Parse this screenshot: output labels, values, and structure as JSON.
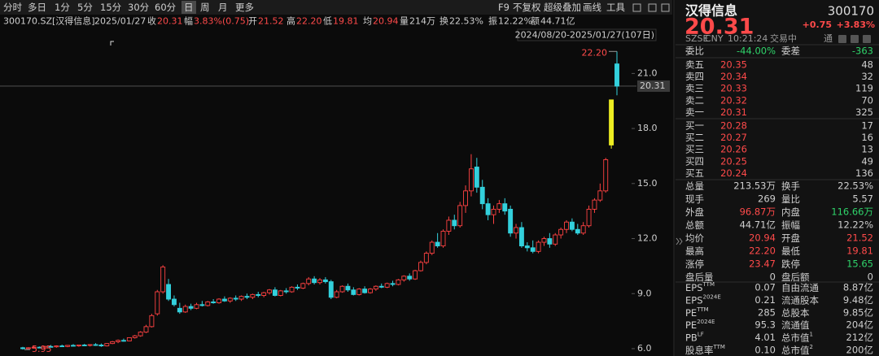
{
  "toolbar": {
    "periods": [
      "分时",
      "多日",
      "1分",
      "5分",
      "15分",
      "30分",
      "60分",
      "日",
      "周",
      "月",
      "更多"
    ],
    "selected": 7,
    "tools": [
      "F9",
      "不复权",
      "超级叠加",
      "画线",
      "工具"
    ]
  },
  "info_bar": {
    "symbol": "300170.SZ[汉得信息]",
    "date": "2025/01/27",
    "fields": [
      {
        "label": "收",
        "value": "20.31",
        "color": "up"
      },
      {
        "label": "幅",
        "value": "3.83%(0.75)",
        "color": "up"
      },
      {
        "label": "开",
        "value": "21.52",
        "color": "up"
      },
      {
        "label": "高",
        "value": "22.20",
        "color": "up"
      },
      {
        "label": "低",
        "value": "19.81",
        "color": "up"
      },
      {
        "label": "均",
        "value": "20.94",
        "color": "up"
      },
      {
        "label": "量",
        "value": "214万"
      },
      {
        "label": "换",
        "value": "22.53%"
      },
      {
        "label": "振",
        "value": "12.22%"
      },
      {
        "label": "额",
        "value": "44.71亿"
      }
    ]
  },
  "chart_data": {
    "type": "candlestick",
    "range_label": "2024/08/20-2025/01/27(107日)",
    "ohlc": [
      [
        6.05,
        6.1,
        5.95,
        6.0
      ],
      [
        6.0,
        6.08,
        5.97,
        6.05
      ],
      [
        6.05,
        6.12,
        6.0,
        6.08
      ],
      [
        6.08,
        6.12,
        6.02,
        6.04
      ],
      [
        6.04,
        6.15,
        6.02,
        6.12
      ],
      [
        6.12,
        6.2,
        6.08,
        6.1
      ],
      [
        6.1,
        6.18,
        6.05,
        6.15
      ],
      [
        6.15,
        6.22,
        6.1,
        6.12
      ],
      [
        6.12,
        6.2,
        6.08,
        6.18
      ],
      [
        6.18,
        6.25,
        6.12,
        6.15
      ],
      [
        6.15,
        6.22,
        6.1,
        6.2
      ],
      [
        6.2,
        6.26,
        6.14,
        6.18
      ],
      [
        6.18,
        6.24,
        6.12,
        6.22
      ],
      [
        6.22,
        6.3,
        6.15,
        6.2
      ],
      [
        6.2,
        6.28,
        6.1,
        6.15
      ],
      [
        6.15,
        6.3,
        6.12,
        6.28
      ],
      [
        6.28,
        6.42,
        6.25,
        6.38
      ],
      [
        6.38,
        6.5,
        6.3,
        6.45
      ],
      [
        6.45,
        6.55,
        6.38,
        6.42
      ],
      [
        6.42,
        6.62,
        6.4,
        6.6
      ],
      [
        6.6,
        6.75,
        6.55,
        6.7
      ],
      [
        6.7,
        6.95,
        6.65,
        6.9
      ],
      [
        6.9,
        7.3,
        6.85,
        7.2
      ],
      [
        7.2,
        7.9,
        7.15,
        7.8
      ],
      [
        7.9,
        9.2,
        7.8,
        9.1
      ],
      [
        9.1,
        10.55,
        9.0,
        10.45
      ],
      [
        9.5,
        9.8,
        8.6,
        8.7
      ],
      [
        8.7,
        8.9,
        8.3,
        8.4
      ],
      [
        8.2,
        8.5,
        7.9,
        8.0
      ],
      [
        8.0,
        8.4,
        7.95,
        8.3
      ],
      [
        8.3,
        8.45,
        8.1,
        8.2
      ],
      [
        8.2,
        8.5,
        8.15,
        8.4
      ],
      [
        8.4,
        8.6,
        8.3,
        8.35
      ],
      [
        8.35,
        8.6,
        8.3,
        8.55
      ],
      [
        8.55,
        8.7,
        8.45,
        8.5
      ],
      [
        8.5,
        8.75,
        8.45,
        8.7
      ],
      [
        8.7,
        8.85,
        8.55,
        8.6
      ],
      [
        8.6,
        8.8,
        8.5,
        8.75
      ],
      [
        8.75,
        8.9,
        8.6,
        8.7
      ],
      [
        8.7,
        8.9,
        8.6,
        8.85
      ],
      [
        8.85,
        9.0,
        8.7,
        8.8
      ],
      [
        8.8,
        9.0,
        8.7,
        8.95
      ],
      [
        8.95,
        9.1,
        8.8,
        8.9
      ],
      [
        8.9,
        9.1,
        8.8,
        9.05
      ],
      [
        9.05,
        9.25,
        8.95,
        9.2
      ],
      [
        9.2,
        9.35,
        8.85,
        8.9
      ],
      [
        8.9,
        9.2,
        8.85,
        9.15
      ],
      [
        9.15,
        9.3,
        9.0,
        9.1
      ],
      [
        9.1,
        9.4,
        9.05,
        9.35
      ],
      [
        9.35,
        9.5,
        9.2,
        9.3
      ],
      [
        9.3,
        9.6,
        9.25,
        9.55
      ],
      [
        9.55,
        9.9,
        9.45,
        9.8
      ],
      [
        9.8,
        9.95,
        9.5,
        9.6
      ],
      [
        9.6,
        9.85,
        9.5,
        9.75
      ],
      [
        9.75,
        9.9,
        9.55,
        9.65
      ],
      [
        9.65,
        9.75,
        8.7,
        8.8
      ],
      [
        8.8,
        9.2,
        8.75,
        9.1
      ],
      [
        9.1,
        9.45,
        9.05,
        9.4
      ],
      [
        9.4,
        9.55,
        9.1,
        9.2
      ],
      [
        9.2,
        9.35,
        8.9,
        8.95
      ],
      [
        8.95,
        9.3,
        8.9,
        9.25
      ],
      [
        9.25,
        9.4,
        9.0,
        9.05
      ],
      [
        9.05,
        9.3,
        9.0,
        9.25
      ],
      [
        9.25,
        9.45,
        9.15,
        9.4
      ],
      [
        9.4,
        9.55,
        9.3,
        9.35
      ],
      [
        9.35,
        9.6,
        9.3,
        9.55
      ],
      [
        9.55,
        9.7,
        9.4,
        9.5
      ],
      [
        9.5,
        9.8,
        9.45,
        9.75
      ],
      [
        9.75,
        10.0,
        9.65,
        9.95
      ],
      [
        9.95,
        10.1,
        9.7,
        9.8
      ],
      [
        9.8,
        10.3,
        9.75,
        10.25
      ],
      [
        10.25,
        10.8,
        10.2,
        10.7
      ],
      [
        10.7,
        11.3,
        10.6,
        11.2
      ],
      [
        11.2,
        11.9,
        11.1,
        11.8
      ],
      [
        11.8,
        12.3,
        11.5,
        11.6
      ],
      [
        11.6,
        12.5,
        11.5,
        12.4
      ],
      [
        12.4,
        13.2,
        12.2,
        13.0
      ],
      [
        13.0,
        13.3,
        12.5,
        12.7
      ],
      [
        12.7,
        14.0,
        12.6,
        13.8
      ],
      [
        13.8,
        14.9,
        13.4,
        14.6
      ],
      [
        14.6,
        16.6,
        14.3,
        15.8
      ],
      [
        15.9,
        16.4,
        14.5,
        14.8
      ],
      [
        14.8,
        15.2,
        13.6,
        13.9
      ],
      [
        13.9,
        14.2,
        13.0,
        13.3
      ],
      [
        13.3,
        13.8,
        12.8,
        13.6
      ],
      [
        13.6,
        14.1,
        13.4,
        13.9
      ],
      [
        13.9,
        14.2,
        13.3,
        13.5
      ],
      [
        13.6,
        13.8,
        12.1,
        12.3
      ],
      [
        12.3,
        12.8,
        12.0,
        12.6
      ],
      [
        12.6,
        12.9,
        11.5,
        11.6
      ],
      [
        11.6,
        11.8,
        11.3,
        11.5
      ],
      [
        11.5,
        11.9,
        11.2,
        11.3
      ],
      [
        11.3,
        11.9,
        11.2,
        11.8
      ],
      [
        11.8,
        12.1,
        11.6,
        12.0
      ],
      [
        12.0,
        12.3,
        11.5,
        11.7
      ],
      [
        11.7,
        12.3,
        11.6,
        12.2
      ],
      [
        12.2,
        12.6,
        12.0,
        12.5
      ],
      [
        12.5,
        13.0,
        12.3,
        12.9
      ],
      [
        12.9,
        13.1,
        12.4,
        12.5
      ],
      [
        12.5,
        12.8,
        12.2,
        12.3
      ],
      [
        12.3,
        12.9,
        12.2,
        12.7
      ],
      [
        12.7,
        13.8,
        12.6,
        13.6
      ],
      [
        13.6,
        14.2,
        13.4,
        14.1
      ],
      [
        14.1,
        15.0,
        14.0,
        14.6
      ],
      [
        14.6,
        16.4,
        14.5,
        16.3
      ],
      [
        17.1,
        19.56,
        16.9,
        19.56
      ],
      [
        21.52,
        22.2,
        19.81,
        20.31
      ]
    ],
    "ylim": [
      5.6,
      22.7
    ],
    "yticks": [
      {
        "value": 6,
        "label": "6.0"
      },
      {
        "value": 9,
        "label": "9.0"
      },
      {
        "value": 12,
        "label": "12.0"
      },
      {
        "value": 15,
        "label": "15.0"
      },
      {
        "value": 18,
        "label": "18.0"
      },
      {
        "value": 21,
        "label": "21.0"
      }
    ],
    "colors": {
      "up": "#ff4242",
      "down": "#33d0dc",
      "limit_up": "#eeee22"
    },
    "high_label": {
      "value": 22.2,
      "label": "22.20"
    },
    "low_label": 5.95,
    "last_label": 20.31
  },
  "quote": {
    "name": "汉得信息",
    "code": "300170",
    "price": "20.31",
    "change": "+0.75",
    "change_pct": "+3.83%",
    "status": [
      "SZSE",
      "CNY",
      "10:21:24",
      "交易中"
    ],
    "badge": "通"
  },
  "order_book": {
    "summary": [
      {
        "label": "委比",
        "value": "-44.00%",
        "color": "down"
      },
      {
        "label": "委差",
        "value": "-363",
        "color": "down"
      }
    ],
    "asks": [
      {
        "label": "卖五",
        "price": "20.35",
        "volume": "48"
      },
      {
        "label": "卖四",
        "price": "20.34",
        "volume": "32"
      },
      {
        "label": "卖三",
        "price": "20.33",
        "volume": "119"
      },
      {
        "label": "卖二",
        "price": "20.32",
        "volume": "70"
      },
      {
        "label": "卖一",
        "price": "20.31",
        "volume": "325"
      }
    ],
    "bids": [
      {
        "label": "买一",
        "price": "20.28",
        "volume": "17"
      },
      {
        "label": "买二",
        "price": "20.27",
        "volume": "16"
      },
      {
        "label": "买三",
        "price": "20.26",
        "volume": "13"
      },
      {
        "label": "买四",
        "price": "20.25",
        "volume": "49"
      },
      {
        "label": "买五",
        "price": "20.24",
        "volume": "136"
      }
    ]
  },
  "stats": [
    [
      {
        "label": "总量",
        "value": "213.53万"
      },
      {
        "label": "换手",
        "value": "22.53%"
      }
    ],
    [
      {
        "label": "现手",
        "value": "269"
      },
      {
        "label": "量比",
        "value": "5.57"
      }
    ],
    [
      {
        "label": "外盘",
        "value": "96.87万",
        "color": "up"
      },
      {
        "label": "内盘",
        "value": "116.66万",
        "color": "down"
      }
    ],
    [
      {
        "label": "总额",
        "value": "44.71亿"
      },
      {
        "label": "振幅",
        "value": "12.22%"
      }
    ],
    [
      {
        "label": "均价",
        "value": "20.94",
        "color": "up"
      },
      {
        "label": "开盘",
        "value": "21.52",
        "color": "up"
      }
    ],
    [
      {
        "label": "最高",
        "value": "22.20",
        "color": "up"
      },
      {
        "label": "最低",
        "value": "19.81",
        "color": "up"
      }
    ],
    [
      {
        "label": "涨停",
        "value": "23.47",
        "color": "up"
      },
      {
        "label": "跌停",
        "value": "15.65",
        "color": "down"
      }
    ],
    [
      {
        "label": "盘后量",
        "value": "0"
      },
      {
        "label": "盘后额",
        "value": "0"
      }
    ]
  ],
  "fundamentals": [
    [
      {
        "label": "EPS",
        "sup": "TTM",
        "value": "0.07"
      },
      {
        "label": "自由流通",
        "value": "8.87亿"
      }
    ],
    [
      {
        "label": "EPS",
        "sup": "2024E",
        "value": "0.21"
      },
      {
        "label": "流通股本",
        "value": "9.48亿"
      }
    ],
    [
      {
        "label": "PE",
        "sup": "TTM",
        "value": "285"
      },
      {
        "label": "总股本",
        "value": "9.85亿"
      }
    ],
    [
      {
        "label": "PE",
        "sup": "2024E",
        "value": "95.3"
      },
      {
        "label": "流通值",
        "value": "204亿"
      }
    ],
    [
      {
        "label": "PB",
        "sup": "LF",
        "value": "4.01"
      },
      {
        "label": "总市值",
        "sup": "1",
        "value": "212亿"
      }
    ],
    [
      {
        "label": "股息率",
        "sup": "TTM",
        "value": "0.10"
      },
      {
        "label": "总市值",
        "sup": "2",
        "value": "200亿"
      }
    ]
  ]
}
